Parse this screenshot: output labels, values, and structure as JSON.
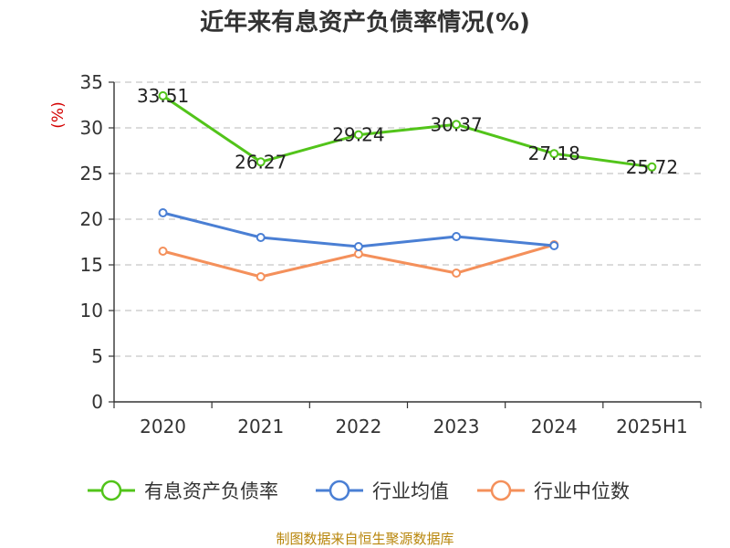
{
  "chart_data": {
    "type": "line",
    "title": "近年来有息资产负债率情况(%)",
    "ylabel": "(%)",
    "ylim": [
      0,
      35
    ],
    "yticks": [
      0,
      5,
      10,
      15,
      20,
      25,
      30,
      35
    ],
    "categories": [
      "2020",
      "2021",
      "2022",
      "2023",
      "2024",
      "2025H1"
    ],
    "grid": true,
    "legend_position": "bottom",
    "series": [
      {
        "name": "有息资产负债率",
        "color": "#52c41a",
        "values": [
          33.51,
          26.27,
          29.24,
          30.37,
          27.18,
          25.72
        ],
        "labels": [
          "33.51",
          "26.27",
          "29.24",
          "30.37",
          "27.18",
          "25.72"
        ]
      },
      {
        "name": "行业均值",
        "color": "#4a7fd4",
        "values": [
          20.7,
          18.0,
          17.0,
          18.1,
          17.1,
          null
        ]
      },
      {
        "name": "行业中位数",
        "color": "#f4905b",
        "values": [
          16.5,
          13.7,
          16.2,
          14.1,
          17.2,
          null
        ]
      }
    ]
  },
  "source": "制图数据来自恒生聚源数据库"
}
